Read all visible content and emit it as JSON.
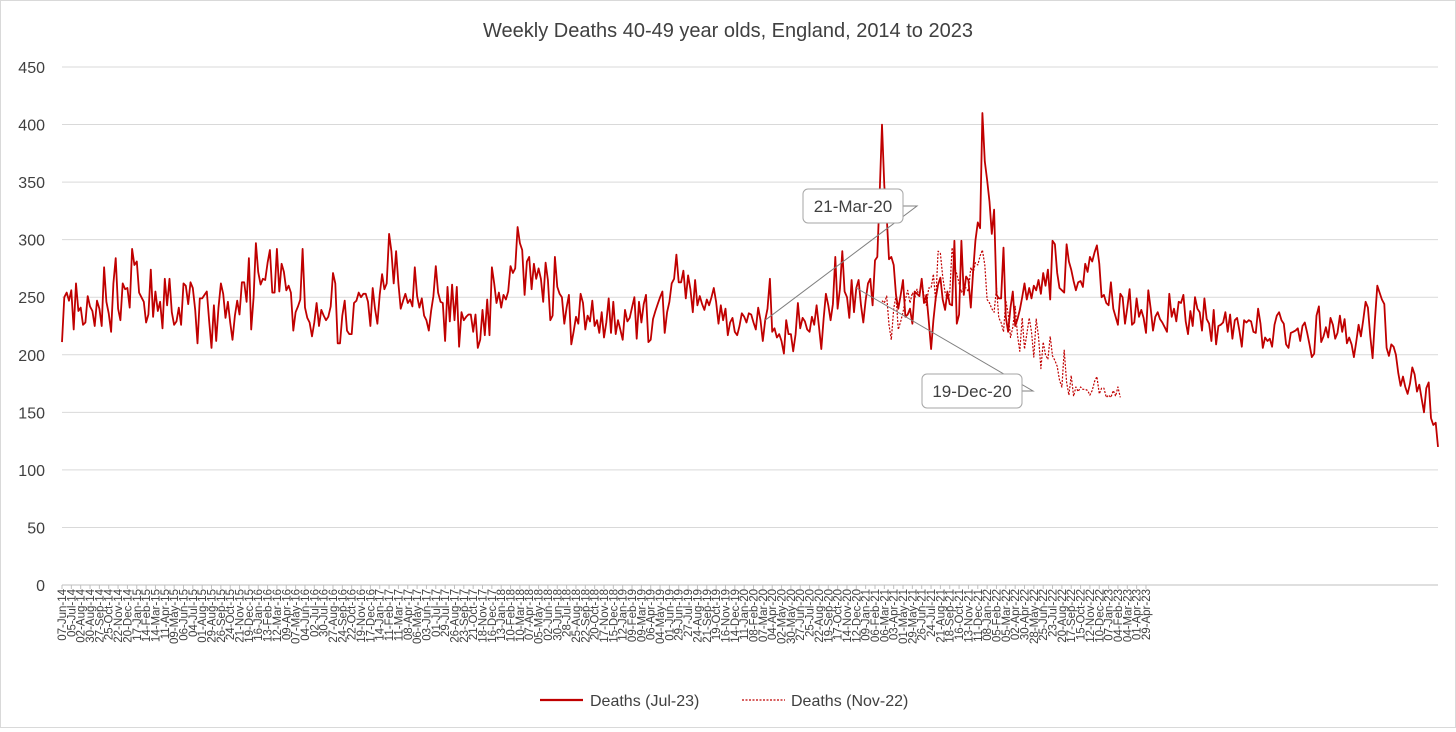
{
  "chart_data": {
    "type": "line",
    "title": "Weekly Deaths 40-49 year olds, England, 2014 to 2023",
    "xlabel": "",
    "ylabel": "",
    "ylim": [
      0,
      450
    ],
    "yticks": [
      0,
      50,
      100,
      150,
      200,
      250,
      300,
      350,
      400,
      450
    ],
    "grid": true,
    "legend_position": "bottom",
    "colors": {
      "jul23": "#C00000",
      "nov22": "#C00000",
      "grid": "#d9d9d9",
      "text": "#404040"
    },
    "x_tick_labels": [
      "07-Jun-14",
      "05-Jul-14",
      "02-Aug-14",
      "30-Aug-14",
      "27-Sep-14",
      "25-Oct-14",
      "22-Nov-14",
      "20-Dec-14",
      "17-Jan-15",
      "14-Feb-15",
      "14-Mar-15",
      "11-Apr-15",
      "09-May-15",
      "06-Jun-15",
      "04-Jul-15",
      "01-Aug-15",
      "29-Aug-15",
      "26-Sep-15",
      "24-Oct-15",
      "21-Nov-15",
      "19-Dec-15",
      "16-Jan-16",
      "13-Feb-16",
      "12-Mar-16",
      "09-Apr-16",
      "07-May-16",
      "04-Jun-16",
      "02-Jul-16",
      "30-Jul-16",
      "27-Aug-16",
      "24-Sep-16",
      "22-Oct-16",
      "19-Nov-16",
      "17-Dec-16",
      "14-Jan-17",
      "11-Feb-17",
      "11-Mar-17",
      "08-Apr-17",
      "06-May-17",
      "03-Jun-17",
      "01-Jul-17",
      "29-Jul-17",
      "26-Aug-17",
      "23-Sep-17",
      "21-Oct-17",
      "18-Nov-17",
      "16-Dec-17",
      "13-Jan-18",
      "10-Feb-18",
      "10-Mar-18",
      "07-Apr-18",
      "05-May-18",
      "02-Jun-18",
      "30-Jun-18",
      "28-Jul-18",
      "25-Aug-18",
      "22-Sep-18",
      "20-Oct-18",
      "17-Nov-18",
      "15-Dec-18",
      "12-Jan-19",
      "09-Feb-19",
      "09-Mar-19",
      "06-Apr-19",
      "04-May-19",
      "01-Jun-19",
      "29-Jun-19",
      "27-Jul-19",
      "24-Aug-19",
      "21-Sep-19",
      "19-Oct-19",
      "16-Nov-19",
      "14-Dec-19",
      "11-Jan-20",
      "08-Feb-20",
      "07-Mar-20",
      "04-Apr-20",
      "02-May-20",
      "30-May-20",
      "27-Jun-20",
      "25-Jul-20",
      "22-Aug-20",
      "19-Sep-20",
      "17-Oct-20",
      "14-Nov-20",
      "12-Dec-20",
      "09-Jan-21",
      "06-Feb-21",
      "06-Mar-21",
      "03-Apr-21",
      "01-May-21",
      "29-May-21",
      "26-Jun-21",
      "24-Jul-21",
      "21-Aug-21",
      "18-Sep-21",
      "16-Oct-21",
      "13-Nov-21",
      "11-Dec-21",
      "08-Jan-22",
      "05-Feb-22",
      "05-Mar-22",
      "02-Apr-22",
      "30-Apr-22",
      "28-May-22",
      "25-Jun-22",
      "23-Jul-22",
      "20-Aug-22",
      "17-Sep-22",
      "15-Oct-22",
      "12-Nov-22",
      "10-Dec-22",
      "07-Jan-23",
      "04-Feb-23",
      "04-Mar-23",
      "01-Apr-23",
      "29-Apr-23"
    ],
    "annotations": [
      {
        "text": "21-Mar-20",
        "week_index": 301
      },
      {
        "text": "19-Dec-20",
        "week_index": 340
      }
    ],
    "series": [
      {
        "name": "Deaths (Jul-23)",
        "style": "solid",
        "start_week_index": 0,
        "values": [
          211,
          250,
          254,
          247,
          256,
          222,
          262,
          238,
          241,
          226,
          228,
          251,
          242,
          238,
          225,
          247,
          240,
          225,
          276,
          246,
          236,
          220,
          262,
          284,
          240,
          230,
          262,
          257,
          258,
          241,
          292,
          278,
          281,
          254,
          250,
          246,
          228,
          235,
          274,
          233,
          255,
          238,
          246,
          223,
          266,
          243,
          266,
          237,
          226,
          229,
          241,
          226,
          262,
          260,
          244,
          263,
          258,
          239,
          210,
          249,
          249,
          252,
          255,
          229,
          206,
          243,
          212,
          241,
          262,
          253,
          232,
          246,
          228,
          213,
          234,
          247,
          235,
          263,
          263,
          246,
          284,
          222,
          250,
          297,
          272,
          261,
          266,
          265,
          280,
          291,
          254,
          254,
          292,
          255,
          279,
          272,
          256,
          260,
          254,
          221,
          237,
          242,
          248,
          292,
          241,
          232,
          228,
          216,
          228,
          245,
          225,
          239,
          234,
          230,
          233,
          242,
          271,
          262,
          210,
          210,
          234,
          247,
          221,
          218,
          218,
          245,
          247,
          254,
          250,
          253,
          253,
          246,
          225,
          258,
          240,
          227,
          252,
          270,
          257,
          262,
          305,
          290,
          262,
          290,
          262,
          240,
          247,
          253,
          245,
          248,
          242,
          276,
          251,
          241,
          249,
          234,
          230,
          221,
          238,
          251,
          277,
          254,
          246,
          245,
          212,
          259,
          229,
          261,
          230,
          259,
          207,
          237,
          230,
          233,
          235,
          235,
          220,
          235,
          206,
          213,
          239,
          217,
          248,
          217,
          276,
          262,
          245,
          254,
          241,
          252,
          248,
          255,
          277,
          271,
          275,
          311,
          297,
          291,
          252,
          281,
          285,
          257,
          279,
          266,
          275,
          266,
          246,
          280,
          265,
          230,
          234,
          285,
          259,
          253,
          250,
          227,
          241,
          252,
          209,
          220,
          233,
          227,
          253,
          245,
          222,
          234,
          229,
          247,
          225,
          230,
          219,
          237,
          215,
          228,
          249,
          219,
          246,
          218,
          230,
          222,
          213,
          239,
          229,
          232,
          241,
          250,
          214,
          246,
          228,
          244,
          252,
          211,
          213,
          231,
          238,
          244,
          250,
          255,
          219,
          237,
          246,
          262,
          266,
          287,
          263,
          263,
          273,
          249,
          269,
          257,
          237,
          265,
          243,
          251,
          244,
          239,
          248,
          243,
          250,
          258,
          246,
          227,
          243,
          230,
          240,
          217,
          228,
          232,
          220,
          217,
          225,
          236,
          233,
          228,
          236,
          235,
          228,
          222,
          241,
          230,
          212,
          230,
          240,
          266,
          220,
          223,
          215,
          218,
          212,
          201,
          230,
          218,
          218,
          203,
          218,
          245,
          223,
          232,
          229,
          222,
          220,
          233,
          226,
          243,
          225,
          205,
          231,
          253,
          243,
          230,
          244,
          285,
          240,
          257,
          290,
          255,
          250,
          232,
          265,
          237,
          258,
          265,
          243,
          228,
          247,
          262,
          266,
          243,
          282,
          285,
          341,
          400,
          347,
          320,
          283,
          285,
          278,
          252,
          240,
          252,
          265,
          233,
          235,
          240,
          227,
          255,
          253,
          251,
          266,
          245,
          252,
          230,
          205,
          230,
          249,
          261,
          267,
          248,
          239,
          255,
          244,
          243,
          299,
          227,
          235,
          299,
          252,
          268,
          265,
          241,
          272,
          299,
          315,
          310,
          410,
          368,
          352,
          333,
          305,
          326,
          252,
          249,
          249,
          293,
          233,
          220,
          241,
          255,
          225,
          231,
          239,
          250,
          262,
          248,
          258,
          249,
          260,
          256,
          265,
          253,
          271,
          260,
          274,
          248,
          299,
          296,
          271,
          258,
          256,
          254,
          296,
          281,
          274,
          264,
          256,
          263,
          264,
          259,
          279,
          272,
          285,
          281,
          289,
          295,
          279,
          250,
          252,
          245,
          243,
          263,
          240,
          233,
          226,
          253,
          250,
          227,
          241,
          257,
          226,
          228,
          249,
          233,
          239,
          232,
          219,
          256,
          240,
          221,
          233,
          237,
          231,
          228,
          224,
          220,
          253,
          233,
          240,
          229,
          246,
          245,
          252,
          229,
          218,
          238,
          225,
          250,
          240,
          237,
          221,
          249,
          231,
          227,
          212,
          239,
          209,
          225,
          226,
          228,
          237,
          220,
          235,
          214,
          230,
          232,
          221,
          207,
          230,
          228,
          230,
          229,
          220,
          219,
          240,
          227,
          206,
          215,
          212,
          214,
          207,
          226,
          234,
          237,
          230,
          227,
          209,
          206,
          219,
          220,
          221,
          223,
          212,
          225,
          228,
          219,
          209,
          198,
          201,
          234,
          242,
          211,
          216,
          224,
          215,
          232,
          226,
          214,
          219,
          234,
          220,
          231,
          210,
          215,
          209,
          198,
          211,
          226,
          216,
          230,
          246,
          241,
          216,
          197,
          230,
          260,
          254,
          248,
          244,
          206,
          199,
          209,
          207,
          200,
          184,
          173,
          181,
          172,
          166,
          175,
          189,
          183,
          168,
          174,
          162,
          150,
          171,
          176,
          145,
          139,
          141,
          120
        ]
      },
      {
        "name": "Deaths (Nov-22)",
        "style": "dotted",
        "start_week_index": 351,
        "values": [
          247,
          245,
          251,
          226,
          213,
          240,
          251,
          222,
          229,
          237,
          248,
          256,
          245,
          254,
          249,
          257,
          250,
          265,
          251,
          243,
          258,
          258,
          270,
          246,
          290,
          288,
          268,
          254,
          249,
          253,
          293,
          277,
          270,
          262,
          254,
          259,
          258,
          255,
          276,
          271,
          280,
          278,
          286,
          291,
          278,
          248,
          245,
          240,
          237,
          258,
          232,
          228,
          220,
          247,
          236,
          215,
          224,
          242,
          217,
          203,
          232,
          205,
          218,
          232,
          220,
          198,
          231,
          216,
          188,
          211,
          200,
          196,
          216,
          199,
          195,
          190,
          178,
          172,
          204,
          176,
          165,
          182,
          164,
          172,
          168,
          172,
          170,
          170,
          169,
          165,
          169,
          177,
          181,
          166,
          171,
          171,
          163,
          165,
          163,
          169,
          164,
          172,
          163
        ]
      }
    ]
  }
}
